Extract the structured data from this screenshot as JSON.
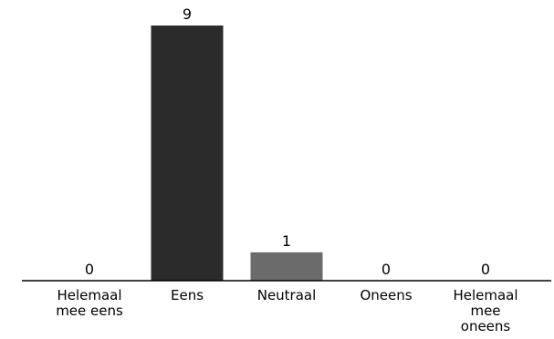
{
  "chart_data": {
    "type": "bar",
    "title": "",
    "xlabel": "",
    "ylabel": "",
    "categories": [
      "Helemaal mee eens",
      "Eens",
      "Neutraal",
      "Oneens",
      "Helemaal mee oneens"
    ],
    "category_lines": [
      [
        "Helemaal",
        "mee eens"
      ],
      [
        "Eens"
      ],
      [
        "Neutraal"
      ],
      [
        "Oneens"
      ],
      [
        "Helemaal",
        "mee",
        "oneens"
      ]
    ],
    "values": [
      0,
      9,
      1,
      0,
      0
    ],
    "data_labels": [
      "0",
      "9",
      "1",
      "0",
      "0"
    ],
    "bar_colors": [
      "#2b2b2b",
      "#2b2b2b",
      "#6b6b6b",
      "#2b2b2b",
      "#2b2b2b"
    ],
    "ylim": [
      0,
      9
    ],
    "grid": false,
    "legend": "none"
  }
}
